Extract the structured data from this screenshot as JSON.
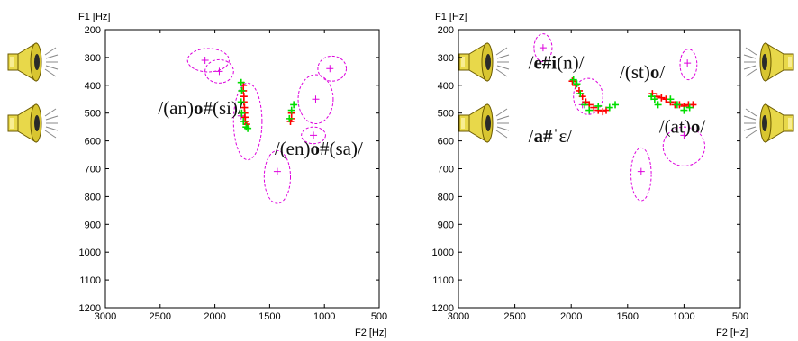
{
  "colors": {
    "formant_a": "#ff0000",
    "formant_b": "#00dd00",
    "ellipse": "#dd00dd",
    "speaker_fill": "#e8d84a",
    "speaker_dark": "#6b5a00"
  },
  "icons": [
    "speaker-icon",
    "speaker-icon",
    "speaker-icon",
    "speaker-icon",
    "speaker-icon",
    "speaker-icon"
  ],
  "chart_data": [
    {
      "type": "scatter",
      "title": "",
      "ylabel": "F1 [Hz]",
      "xlabel": "F2 [Hz]",
      "xlim": [
        3000,
        500
      ],
      "ylim": [
        200,
        1200
      ],
      "x_ticks": [
        "3000",
        "2500",
        "2000",
        "1500",
        "1000",
        "500"
      ],
      "y_ticks": [
        "200",
        "300",
        "400",
        "500",
        "600",
        "700",
        "800",
        "900",
        "1000",
        "1100",
        "1200"
      ],
      "grid": false,
      "annotations": [
        {
          "pre": "/(an)",
          "bold": "o",
          "post": "#(si)/",
          "x": 2520,
          "y": 505
        },
        {
          "pre": "/(en)",
          "bold": "o",
          "post": "#(sa)/",
          "x": 1455,
          "y": 650
        }
      ],
      "vowel_targets": [
        {
          "x": 2090,
          "y": 310
        },
        {
          "x": 1960,
          "y": 350
        },
        {
          "x": 1760,
          "y": 510
        },
        {
          "x": 1430,
          "y": 710
        },
        {
          "x": 1080,
          "y": 450
        },
        {
          "x": 1100,
          "y": 580
        },
        {
          "x": 950,
          "y": 340
        }
      ],
      "target_ellipses": [
        {
          "cx": 2060,
          "cy": 310,
          "rx": 190,
          "ry": 42
        },
        {
          "cx": 1960,
          "cy": 350,
          "rx": 130,
          "ry": 42
        },
        {
          "cx": 1700,
          "cy": 530,
          "rx": 130,
          "ry": 138
        },
        {
          "cx": 1430,
          "cy": 730,
          "rx": 120,
          "ry": 95
        },
        {
          "cx": 1080,
          "cy": 450,
          "rx": 160,
          "ry": 88
        },
        {
          "cx": 930,
          "cy": 340,
          "rx": 130,
          "ry": 45
        },
        {
          "cx": 1100,
          "cy": 580,
          "rx": 110,
          "ry": 30
        }
      ],
      "series": [
        {
          "values": [
            {
              "x": 1740,
              "y": 400
            },
            {
              "x": 1740,
              "y": 420
            },
            {
              "x": 1735,
              "y": 440
            },
            {
              "x": 1735,
              "y": 460
            },
            {
              "x": 1730,
              "y": 480
            },
            {
              "x": 1728,
              "y": 500
            },
            {
              "x": 1725,
              "y": 515
            },
            {
              "x": 1722,
              "y": 530
            },
            {
              "x": 1710,
              "y": 540
            },
            {
              "x": 1300,
              "y": 500
            },
            {
              "x": 1300,
              "y": 520
            },
            {
              "x": 1310,
              "y": 530
            }
          ]
        },
        {
          "values": [
            {
              "x": 1760,
              "y": 390
            },
            {
              "x": 1755,
              "y": 420
            },
            {
              "x": 1760,
              "y": 460
            },
            {
              "x": 1755,
              "y": 500
            },
            {
              "x": 1740,
              "y": 530
            },
            {
              "x": 1715,
              "y": 550
            },
            {
              "x": 1700,
              "y": 555
            },
            {
              "x": 1280,
              "y": 470
            },
            {
              "x": 1300,
              "y": 490
            },
            {
              "x": 1320,
              "y": 520
            }
          ]
        }
      ]
    },
    {
      "type": "scatter",
      "title": "",
      "ylabel": "F1 [Hz]",
      "xlabel": "F2 [Hz]",
      "xlim": [
        3000,
        500
      ],
      "ylim": [
        200,
        1200
      ],
      "x_ticks": [
        "3000",
        "2500",
        "2000",
        "1500",
        "1000",
        "500"
      ],
      "y_ticks": [
        "200",
        "300",
        "400",
        "500",
        "600",
        "700",
        "800",
        "900",
        "1000",
        "1100",
        "1200"
      ],
      "grid": false,
      "annotations": [
        {
          "pre": "/",
          "bold": "e#i",
          "post": "(n)/",
          "x": 2380,
          "y": 340
        },
        {
          "pre": "/",
          "bold": "a#",
          "post": "ˈɛ/",
          "x": 2380,
          "y": 605
        },
        {
          "pre": "/(st)",
          "bold": "o",
          "post": "/",
          "x": 1570,
          "y": 375
        },
        {
          "pre": "/(at)",
          "bold": "o",
          "post": "/",
          "x": 1220,
          "y": 570
        }
      ],
      "vowel_targets": [
        {
          "x": 2250,
          "y": 265
        },
        {
          "x": 1900,
          "y": 470
        },
        {
          "x": 1380,
          "y": 710
        },
        {
          "x": 1000,
          "y": 580
        },
        {
          "x": 970,
          "y": 320
        }
      ],
      "target_ellipses": [
        {
          "cx": 2250,
          "cy": 265,
          "rx": 80,
          "ry": 50
        },
        {
          "cx": 1850,
          "cy": 440,
          "rx": 130,
          "ry": 65
        },
        {
          "cx": 1380,
          "cy": 720,
          "rx": 90,
          "ry": 95
        },
        {
          "cx": 1000,
          "cy": 620,
          "rx": 185,
          "ry": 70
        },
        {
          "cx": 960,
          "cy": 325,
          "rx": 75,
          "ry": 55
        }
      ],
      "series": [
        {
          "values": [
            {
              "x": 1990,
              "y": 385
            },
            {
              "x": 1960,
              "y": 400
            },
            {
              "x": 1930,
              "y": 420
            },
            {
              "x": 1900,
              "y": 440
            },
            {
              "x": 1870,
              "y": 460
            },
            {
              "x": 1840,
              "y": 470
            },
            {
              "x": 1800,
              "y": 480
            },
            {
              "x": 1760,
              "y": 490
            },
            {
              "x": 1720,
              "y": 495
            },
            {
              "x": 1690,
              "y": 490
            },
            {
              "x": 1280,
              "y": 430
            },
            {
              "x": 1240,
              "y": 440
            },
            {
              "x": 1200,
              "y": 445
            },
            {
              "x": 1160,
              "y": 450
            },
            {
              "x": 1120,
              "y": 460
            },
            {
              "x": 1080,
              "y": 470
            },
            {
              "x": 1040,
              "y": 470
            },
            {
              "x": 1000,
              "y": 475
            },
            {
              "x": 960,
              "y": 470
            },
            {
              "x": 920,
              "y": 470
            }
          ]
        },
        {
          "values": [
            {
              "x": 1980,
              "y": 380
            },
            {
              "x": 1950,
              "y": 395
            },
            {
              "x": 1920,
              "y": 430
            },
            {
              "x": 1880,
              "y": 470
            },
            {
              "x": 1840,
              "y": 490
            },
            {
              "x": 1760,
              "y": 475
            },
            {
              "x": 1660,
              "y": 480
            },
            {
              "x": 1610,
              "y": 470
            },
            {
              "x": 1290,
              "y": 440
            },
            {
              "x": 1260,
              "y": 450
            },
            {
              "x": 1230,
              "y": 470
            },
            {
              "x": 1120,
              "y": 450
            },
            {
              "x": 1060,
              "y": 470
            },
            {
              "x": 1000,
              "y": 490
            },
            {
              "x": 950,
              "y": 480
            }
          ]
        }
      ]
    }
  ]
}
